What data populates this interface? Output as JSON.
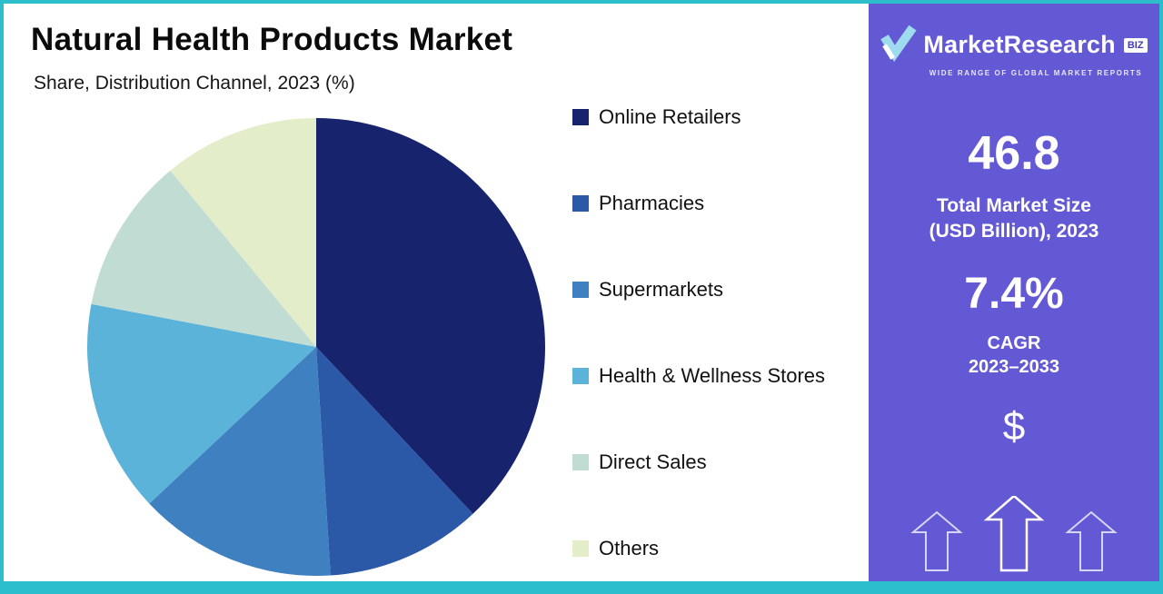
{
  "page": {
    "title": "Natural Health Products Market",
    "subtitle": "Share, Distribution Channel, 2023 (%)"
  },
  "chart_data": {
    "type": "pie",
    "title": "Natural Health Products Market",
    "subtitle": "Share, Distribution Channel, 2023 (%)",
    "unit": "%",
    "legend_position": "right",
    "start_angle_deg": 0,
    "direction": "clockwise",
    "slices": [
      {
        "label": "Online Retailers",
        "value": 38,
        "color": "#17246d"
      },
      {
        "label": "Pharmacies",
        "value": 11,
        "color": "#2c59a7"
      },
      {
        "label": "Supermarkets",
        "value": 14,
        "color": "#3f80c0"
      },
      {
        "label": "Health & Wellness Stores",
        "value": 15,
        "color": "#5bb3d9"
      },
      {
        "label": "Direct Sales",
        "value": 11,
        "color": "#c0dcd3"
      },
      {
        "label": "Others",
        "value": 11,
        "color": "#e4edc9"
      }
    ]
  },
  "sidebar": {
    "brand": {
      "name": "MarketResearch",
      "suffix": "BIZ",
      "tagline": "WIDE RANGE OF GLOBAL MARKET REPORTS"
    },
    "stats": [
      {
        "value": "46.8",
        "label_lines": [
          "Total Market Size",
          "(USD Billion), 2023"
        ]
      },
      {
        "value": "7.4%",
        "label_lines": [
          "CAGR",
          "2023–2033"
        ]
      }
    ],
    "growth": {
      "dollar": "$"
    },
    "colors": {
      "background": "#6459d4",
      "text": "#ffffff"
    }
  },
  "theme": {
    "border_color": "#2dbecb",
    "background": "#ffffff"
  }
}
